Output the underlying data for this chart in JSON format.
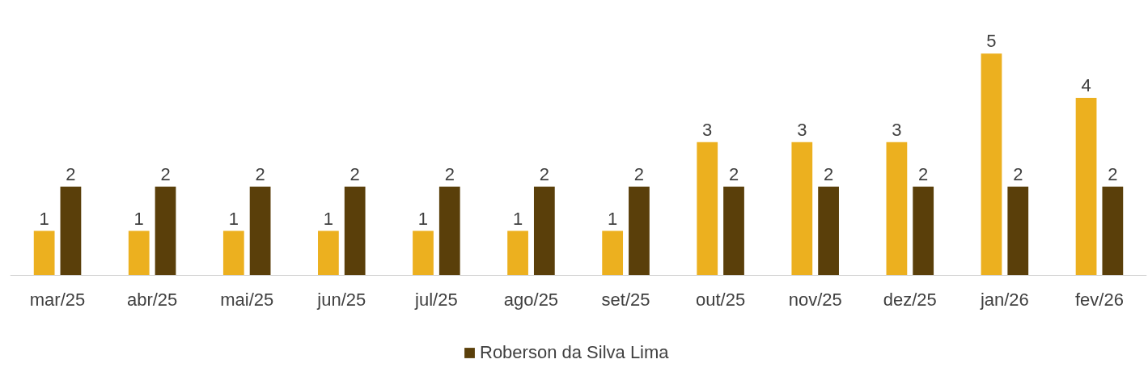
{
  "chart_data": {
    "type": "bar",
    "categories": [
      "mar/25",
      "abr/25",
      "mai/25",
      "jun/25",
      "jul/25",
      "ago/25",
      "set/25",
      "out/25",
      "nov/25",
      "dez/25",
      "jan/26",
      "fev/26"
    ],
    "series": [
      {
        "color": "#ecb01f",
        "values": [
          1,
          1,
          1,
          1,
          1,
          1,
          1,
          3,
          3,
          3,
          5,
          4
        ]
      },
      {
        "name": "Roberson da Silva Lima",
        "color": "#5a3f0a",
        "values": [
          2,
          2,
          2,
          2,
          2,
          2,
          2,
          2,
          2,
          2,
          2,
          2
        ]
      }
    ],
    "data_labels": true,
    "legend": "bottom",
    "grid": false
  }
}
